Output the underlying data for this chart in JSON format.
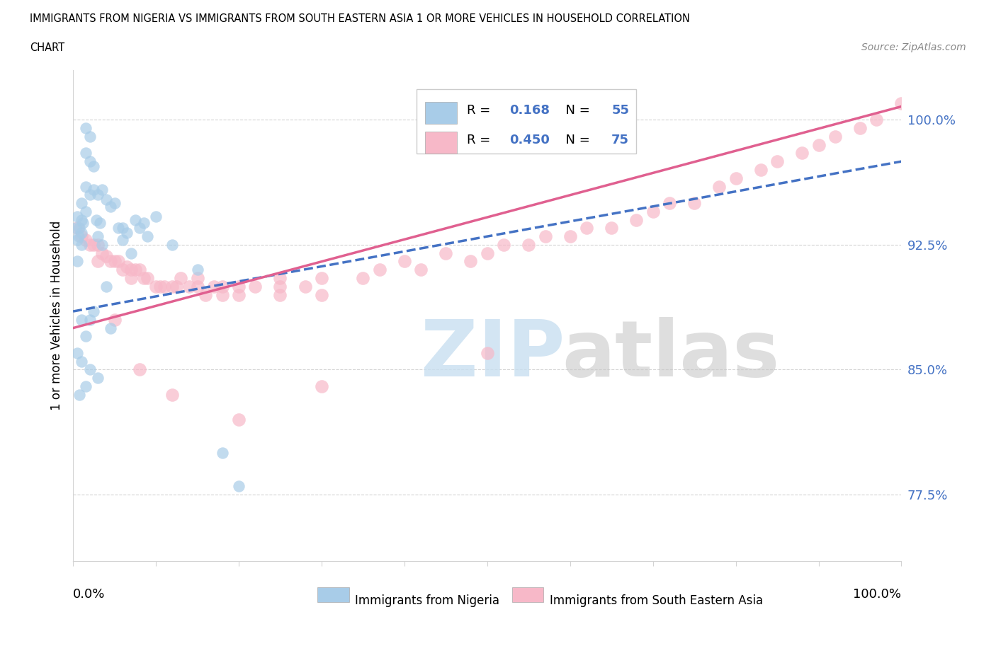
{
  "title_line1": "IMMIGRANTS FROM NIGERIA VS IMMIGRANTS FROM SOUTH EASTERN ASIA 1 OR MORE VEHICLES IN HOUSEHOLD CORRELATION",
  "title_line2": "CHART",
  "source": "Source: ZipAtlas.com",
  "ylabel": "1 or more Vehicles in Household",
  "yticks": [
    77.5,
    85.0,
    92.5,
    100.0
  ],
  "ytick_labels": [
    "77.5%",
    "85.0%",
    "92.5%",
    "100.0%"
  ],
  "xmin": 0.0,
  "xmax": 100.0,
  "ymin": 73.5,
  "ymax": 103.0,
  "legend_r1_val": "0.168",
  "legend_n1_val": "55",
  "legend_r2_val": "0.450",
  "legend_n2_val": "75",
  "color_nigeria": "#a8cce8",
  "color_sea": "#f7b8c8",
  "color_nigeria_line": "#4472c4",
  "color_sea_line": "#e06090",
  "color_text_blue": "#4472c4",
  "watermark_zip": "ZIP",
  "watermark_atlas": "atlas",
  "ng_line_x0": 0.0,
  "ng_line_x1": 100.0,
  "ng_line_y0": 88.5,
  "ng_line_y1": 97.5,
  "sea_line_x0": 0.0,
  "sea_line_x1": 100.0,
  "sea_line_y0": 87.5,
  "sea_line_y1": 100.8,
  "nigeria_x": [
    0.3,
    0.5,
    0.5,
    0.5,
    0.7,
    0.8,
    1.0,
    1.0,
    1.0,
    1.0,
    1.2,
    1.5,
    1.5,
    1.5,
    1.5,
    2.0,
    2.0,
    2.0,
    2.5,
    2.5,
    2.8,
    3.0,
    3.0,
    3.2,
    3.5,
    3.5,
    4.0,
    4.5,
    5.0,
    5.5,
    6.0,
    6.5,
    7.0,
    7.5,
    8.0,
    8.5,
    9.0,
    10.0,
    12.0,
    15.0,
    18.0,
    20.0,
    2.0,
    2.5,
    4.0,
    6.0,
    1.0,
    1.5,
    0.5,
    1.0,
    2.0,
    3.0,
    1.5,
    0.8,
    4.5
  ],
  "nigeria_y": [
    93.5,
    94.2,
    92.8,
    91.5,
    93.0,
    93.5,
    95.0,
    94.0,
    93.2,
    92.5,
    93.8,
    99.5,
    98.0,
    96.0,
    94.5,
    99.0,
    97.5,
    95.5,
    97.2,
    95.8,
    94.0,
    95.5,
    93.0,
    93.8,
    95.8,
    92.5,
    95.2,
    94.8,
    95.0,
    93.5,
    92.8,
    93.2,
    92.0,
    94.0,
    93.5,
    93.8,
    93.0,
    94.2,
    92.5,
    91.0,
    80.0,
    78.0,
    88.0,
    88.5,
    90.0,
    93.5,
    88.0,
    87.0,
    86.0,
    85.5,
    85.0,
    84.5,
    84.0,
    83.5,
    87.5
  ],
  "sea_x": [
    0.5,
    1.0,
    1.5,
    2.0,
    2.5,
    3.0,
    3.0,
    3.5,
    4.0,
    4.5,
    5.0,
    5.5,
    6.0,
    6.5,
    7.0,
    7.0,
    7.5,
    8.0,
    8.5,
    9.0,
    10.0,
    10.5,
    11.0,
    12.0,
    12.5,
    13.0,
    14.0,
    15.0,
    15.0,
    16.0,
    17.0,
    18.0,
    18.0,
    20.0,
    20.0,
    22.0,
    25.0,
    25.0,
    25.0,
    28.0,
    30.0,
    30.0,
    35.0,
    37.0,
    40.0,
    42.0,
    45.0,
    48.0,
    50.0,
    52.0,
    55.0,
    57.0,
    60.0,
    62.0,
    65.0,
    68.0,
    70.0,
    72.0,
    75.0,
    78.0,
    80.0,
    83.0,
    85.0,
    88.0,
    90.0,
    92.0,
    95.0,
    97.0,
    100.0,
    5.0,
    8.0,
    12.0,
    20.0,
    30.0,
    50.0
  ],
  "sea_y": [
    93.5,
    93.0,
    92.8,
    92.5,
    92.5,
    92.5,
    91.5,
    92.0,
    91.8,
    91.5,
    91.5,
    91.5,
    91.0,
    91.2,
    91.0,
    90.5,
    91.0,
    91.0,
    90.5,
    90.5,
    90.0,
    90.0,
    90.0,
    90.0,
    90.0,
    90.5,
    90.0,
    90.0,
    90.5,
    89.5,
    90.0,
    89.5,
    90.0,
    90.0,
    89.5,
    90.0,
    90.0,
    90.5,
    89.5,
    90.0,
    90.5,
    89.5,
    90.5,
    91.0,
    91.5,
    91.0,
    92.0,
    91.5,
    92.0,
    92.5,
    92.5,
    93.0,
    93.0,
    93.5,
    93.5,
    94.0,
    94.5,
    95.0,
    95.0,
    96.0,
    96.5,
    97.0,
    97.5,
    98.0,
    98.5,
    99.0,
    99.5,
    100.0,
    101.0,
    88.0,
    85.0,
    83.5,
    82.0,
    84.0,
    86.0
  ]
}
